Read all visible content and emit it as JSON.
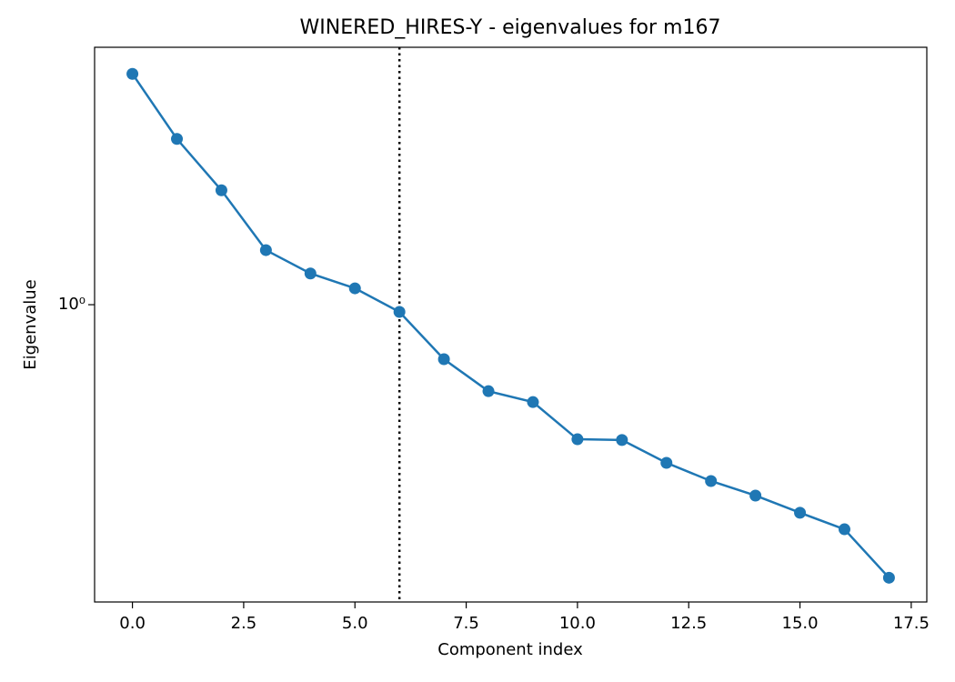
{
  "chart_data": {
    "type": "line",
    "title": "WINERED_HIRES-Y - eigenvalues for m167",
    "xlabel": "Component index",
    "ylabel": "Eigenvalue",
    "x": [
      0,
      1,
      2,
      3,
      4,
      5,
      6,
      7,
      8,
      9,
      10,
      11,
      12,
      13,
      14,
      15,
      16,
      17
    ],
    "series": [
      {
        "name": "eigenvalues",
        "color": "#1f77b4",
        "values": [
          4.09,
          2.75,
          2.01,
          1.395,
          1.21,
          1.105,
          0.957,
          0.717,
          0.59,
          0.552,
          0.44,
          0.438,
          0.381,
          0.341,
          0.312,
          0.281,
          0.254,
          0.189
        ]
      }
    ],
    "xlim": [
      -0.85,
      17.85
    ],
    "xticks": [
      {
        "value": 0,
        "label": "0.0"
      },
      2.5,
      {
        "value": 5,
        "label": "5.0"
      },
      7.5,
      {
        "value": 10,
        "label": "10.0"
      },
      12.5,
      {
        "value": 15,
        "label": "15.0"
      },
      17.5
    ],
    "ylim": [
      0.163,
      4.81
    ],
    "yscale": "log",
    "yticks": [
      {
        "value": 1,
        "label": "10⁰"
      }
    ],
    "vline": {
      "x": 6,
      "color": "#000000"
    },
    "grid": false
  }
}
